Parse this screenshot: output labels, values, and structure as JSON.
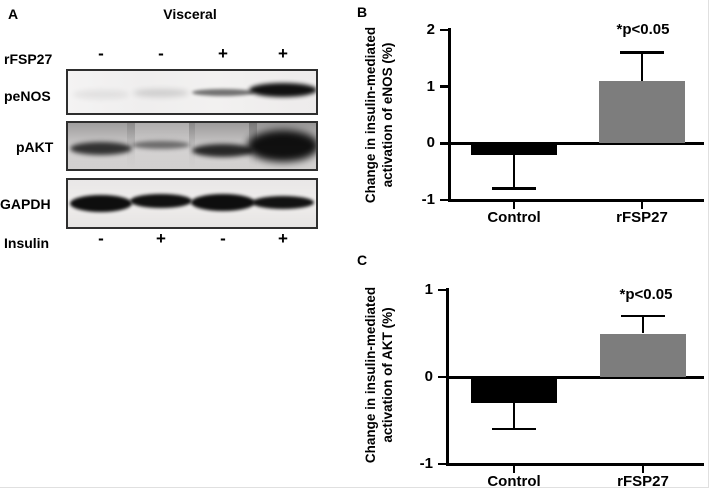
{
  "panelA": {
    "label": "A",
    "title": "Visceral",
    "top_row": {
      "label": "rFSP27",
      "signs": [
        "-",
        "-",
        "+",
        "+"
      ]
    },
    "bottom_row": {
      "label": "Insulin",
      "signs": [
        "-",
        "+",
        "-",
        "+"
      ]
    },
    "blots": [
      {
        "label": "peNOS",
        "band_intensities": [
          0.07,
          0.14,
          0.55,
          0.97
        ]
      },
      {
        "label": "pAKT",
        "band_intensities": [
          0.8,
          0.5,
          0.85,
          0.97
        ]
      },
      {
        "label": "GAPDH",
        "band_intensities": [
          0.98,
          0.97,
          0.98,
          0.96
        ]
      }
    ]
  },
  "chart_data": [
    {
      "panel_label": "B",
      "type": "bar",
      "categories": [
        "Control",
        "rFSP27"
      ],
      "values": [
        -0.2,
        1.1
      ],
      "errors": [
        0.6,
        0.5
      ],
      "bar_colors": [
        "#000000",
        "#7d7d7d"
      ],
      "ylabel": "Change in insulin-mediated activation of eNOS (%)",
      "ylabel_lines": [
        "Change in insulin-mediated",
        "activation of eNOS (%)"
      ],
      "yticks": [
        2,
        1,
        0,
        -1
      ],
      "ylim": [
        -1,
        2
      ],
      "grid": false,
      "annotation": "*p<0.05"
    },
    {
      "panel_label": "C",
      "type": "bar",
      "categories": [
        "Control",
        "rFSP27"
      ],
      "values": [
        -0.3,
        0.5
      ],
      "errors": [
        0.3,
        0.2
      ],
      "bar_colors": [
        "#000000",
        "#7d7d7d"
      ],
      "ylabel": "Change in insulin-mediated activation of AKT (%)",
      "ylabel_lines": [
        "Change in insulin-mediated",
        "activation of AKT (%)"
      ],
      "yticks": [
        1,
        0,
        -1
      ],
      "ylim": [
        -1,
        1
      ],
      "grid": false,
      "annotation": "*p<0.05"
    }
  ]
}
